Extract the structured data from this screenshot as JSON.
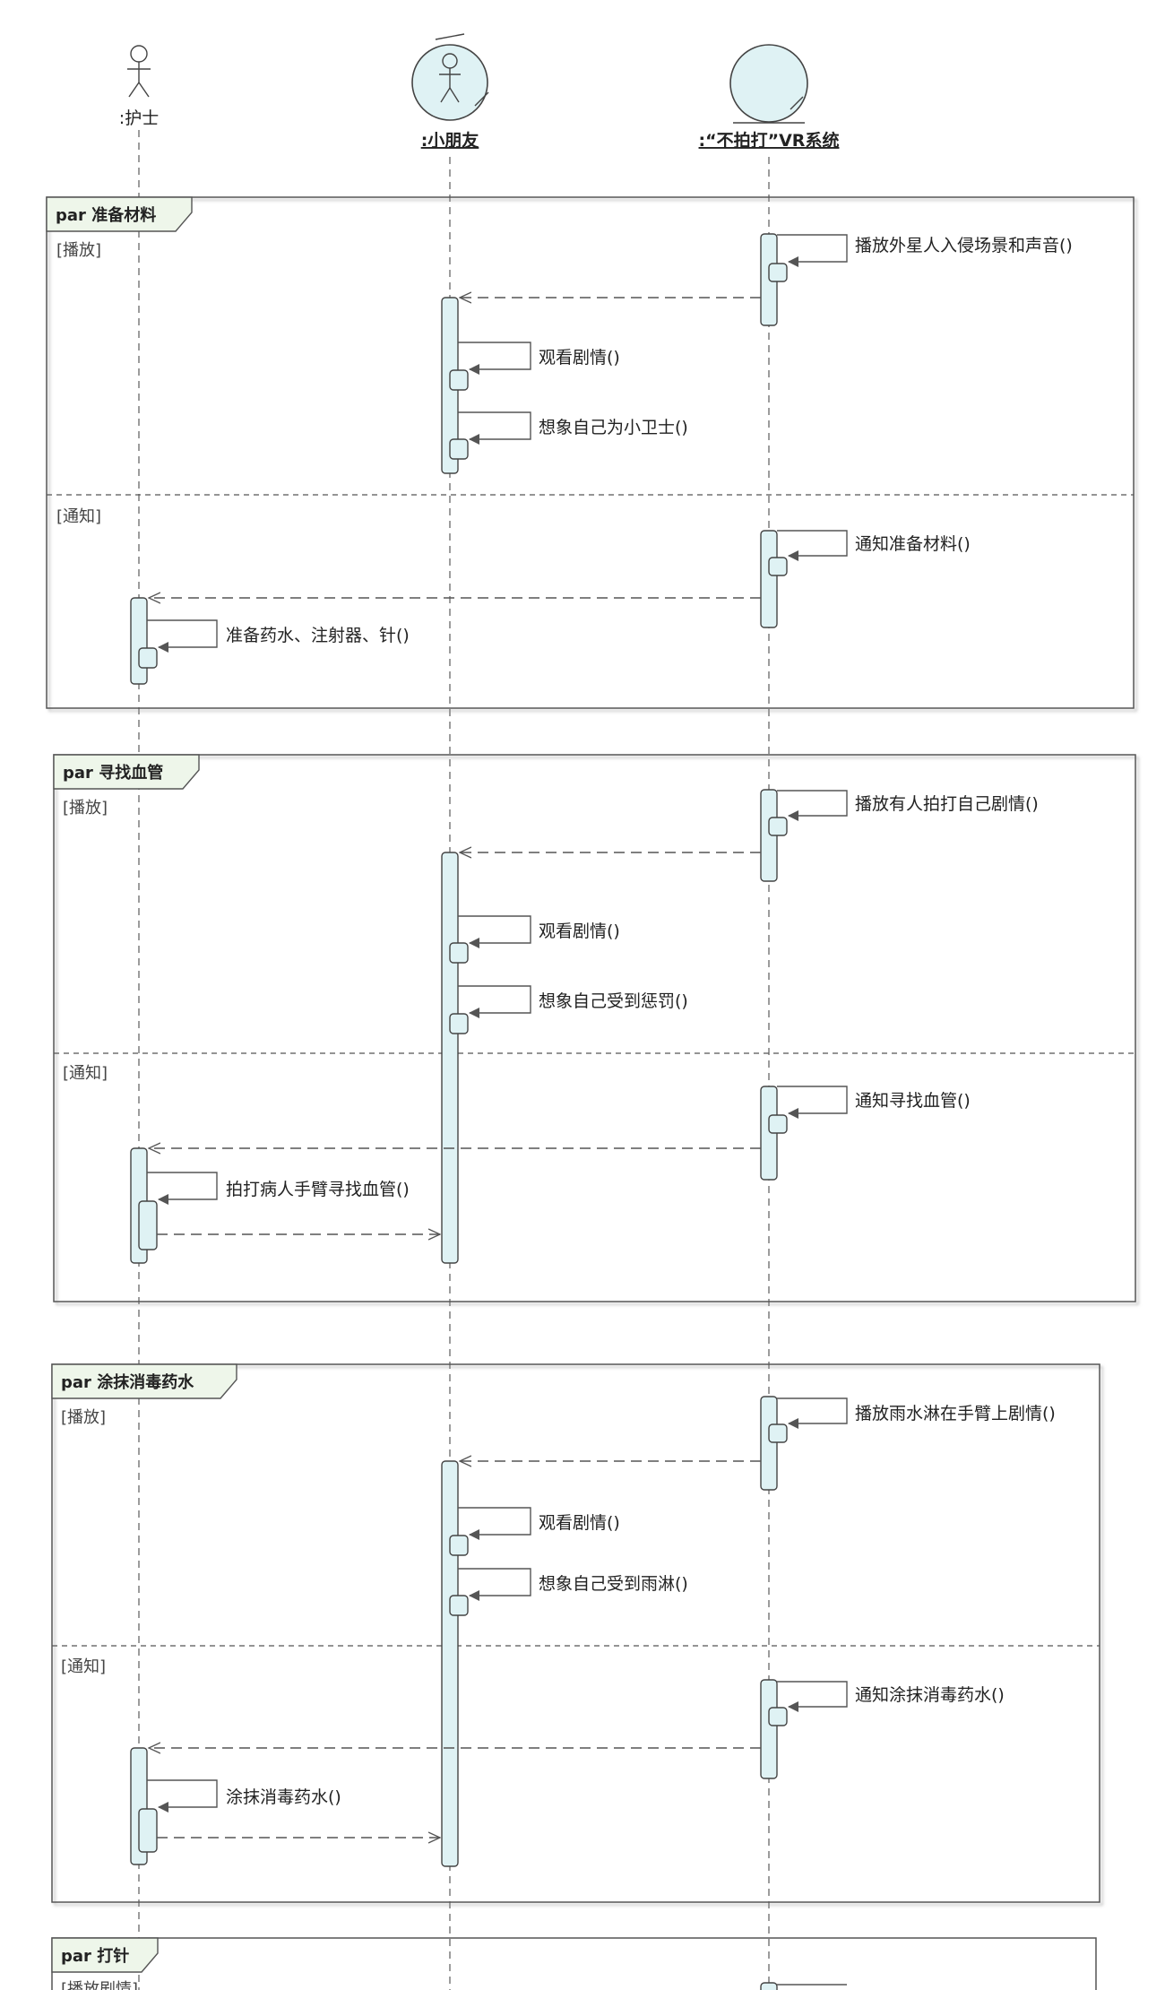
{
  "participants": [
    {
      "id": "nurse",
      "kind": "actor",
      "label": ":护士"
    },
    {
      "id": "kid",
      "kind": "actor-circle",
      "label": ":小朋友"
    },
    {
      "id": "vr",
      "kind": "boundary",
      "label": ":“不拍打”VR系统"
    }
  ],
  "frames": [
    {
      "keyword": "par",
      "title": "准备材料",
      "sections": [
        {
          "guard": "[播放]"
        },
        {
          "guard": "[通知]"
        }
      ],
      "messages": [
        {
          "id": "m1",
          "text": "播放外星人入侵场景和声音()"
        },
        {
          "id": "m2",
          "text": "观看剧情()"
        },
        {
          "id": "m3",
          "text": "想象自己为小卫士()"
        },
        {
          "id": "m4",
          "text": "通知准备材料()"
        },
        {
          "id": "m5",
          "text": "准备药水、注射器、针()"
        }
      ]
    },
    {
      "keyword": "par",
      "title": "寻找血管",
      "sections": [
        {
          "guard": "[播放]"
        },
        {
          "guard": "[通知]"
        }
      ],
      "messages": [
        {
          "id": "m6",
          "text": "播放有人拍打自己剧情()"
        },
        {
          "id": "m7",
          "text": "观看剧情()"
        },
        {
          "id": "m8",
          "text": "想象自己受到惩罚()"
        },
        {
          "id": "m9",
          "text": "通知寻找血管()"
        },
        {
          "id": "m10",
          "text": "拍打病人手臂寻找血管()"
        }
      ]
    },
    {
      "keyword": "par",
      "title": "涂抹消毒药水",
      "sections": [
        {
          "guard": "[播放]"
        },
        {
          "guard": "[通知]"
        }
      ],
      "messages": [
        {
          "id": "m11",
          "text": "播放雨水淋在手臂上剧情()"
        },
        {
          "id": "m12",
          "text": "观看剧情()"
        },
        {
          "id": "m13",
          "text": "想象自己受到雨淋()"
        },
        {
          "id": "m14",
          "text": "通知涂抹消毒药水()"
        },
        {
          "id": "m15",
          "text": "涂抹消毒药水()"
        }
      ]
    },
    {
      "keyword": "par",
      "title": "打针",
      "sections": [
        {
          "guard": "[播放剧情]"
        }
      ],
      "messages": []
    }
  ],
  "colors": {
    "activation_fill": "#dff2f4",
    "frame_tab_fill": "#eef6ea",
    "line": "#555555"
  }
}
